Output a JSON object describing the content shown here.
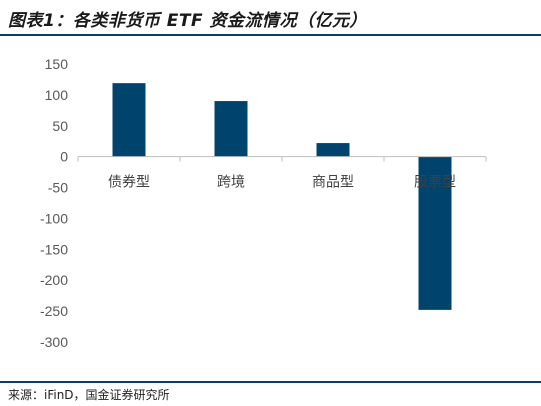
{
  "title": "图表1：各类非货币 ETF 资金流情况（亿元）",
  "source": "来源：iFinD，国金证券研究所",
  "colors": {
    "bar": "#00446d",
    "rule": "#0b3e66",
    "axis": "#bfbfbf"
  },
  "chart_data": {
    "type": "bar",
    "title": "图表1：各类非货币 ETF 资金流情况（亿元）",
    "categories": [
      "债券型",
      "跨境",
      "商品型",
      "股票型"
    ],
    "values": [
      119,
      90,
      22,
      -248
    ],
    "ylim": [
      -300,
      150
    ],
    "yticks": [
      150,
      100,
      50,
      0,
      -50,
      -100,
      -150,
      -200,
      -250,
      -300
    ],
    "xlabel": "",
    "ylabel": "",
    "grid": false,
    "legend": "none"
  }
}
